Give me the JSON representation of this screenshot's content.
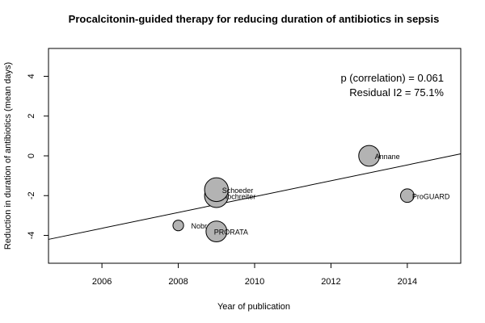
{
  "chart_data": {
    "type": "scatter",
    "title": "Procalcitonin-guided therapy for reducing duration of antibiotics in sepsis",
    "xlabel": "Year of publication",
    "ylabel": "Reduction in duration of antibiotics (mean days)",
    "xlim": [
      2004.6,
      2015.4
    ],
    "ylim": [
      -5.4,
      5.4
    ],
    "xticks": [
      2006,
      2008,
      2010,
      2012,
      2014
    ],
    "yticks": [
      -4,
      -2,
      0,
      2,
      4
    ],
    "grid": false,
    "points": [
      {
        "label": "Nobre",
        "x": 2008,
        "y": -3.5,
        "weight": 0.2
      },
      {
        "label": "PRORATA",
        "x": 2009,
        "y": -3.8,
        "weight": 0.55
      },
      {
        "label": "Hochreiter",
        "x": 2009,
        "y": -2.0,
        "weight": 0.65
      },
      {
        "label": "Schoeder",
        "x": 2009,
        "y": -1.7,
        "weight": 0.65
      },
      {
        "label": "Annane",
        "x": 2013,
        "y": 0.0,
        "weight": 0.55
      },
      {
        "label": "ProGUARD",
        "x": 2014,
        "y": -2.0,
        "weight": 0.3
      }
    ],
    "regression_line": {
      "x": [
        2004.6,
        2015.4
      ],
      "y": [
        -4.2,
        0.1
      ]
    },
    "annotations": [
      "p (correlation) = 0.061",
      "Residual I2 = 75.1%"
    ],
    "point_fill": "#b3b3b3",
    "point_stroke": "#000000"
  }
}
